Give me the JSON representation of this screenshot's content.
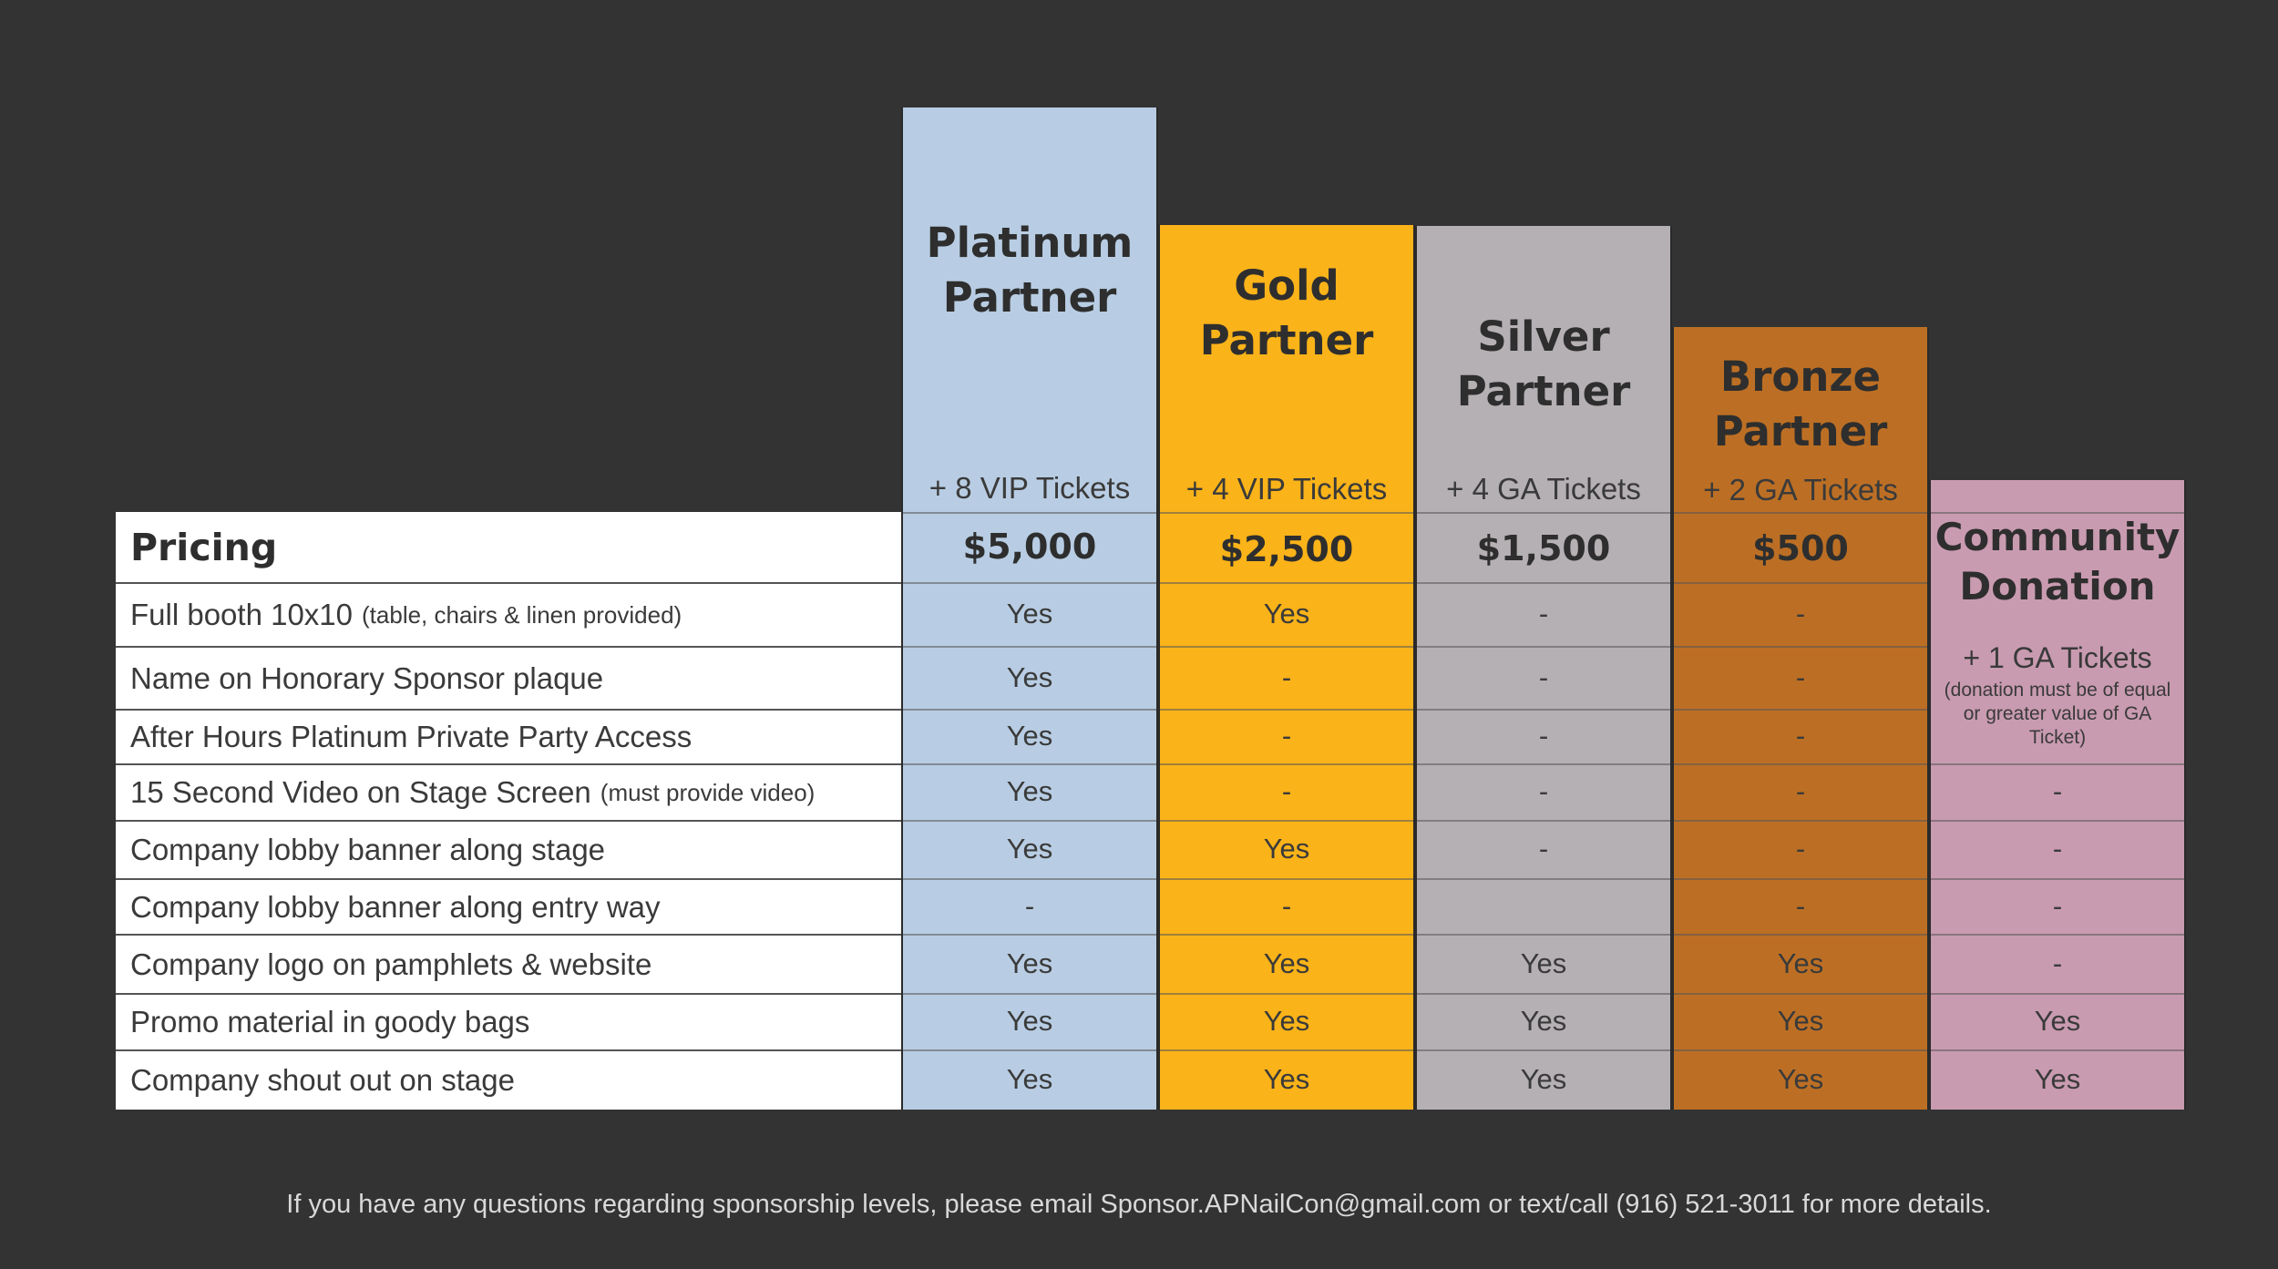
{
  "pricing_label": "Pricing",
  "features": [
    {
      "label": "Full booth 10x10",
      "note": "(table, chairs & linen provided)"
    },
    {
      "label": "Name on Honorary Sponsor plaque",
      "note": ""
    },
    {
      "label": "After Hours Platinum Private Party Access",
      "note": ""
    },
    {
      "label": "15 Second Video on Stage Screen",
      "note": "(must provide video)"
    },
    {
      "label": "Company lobby banner along stage",
      "note": ""
    },
    {
      "label": "Company lobby banner along entry way",
      "note": ""
    },
    {
      "label": "Company logo on pamphlets & website",
      "note": ""
    },
    {
      "label": "Promo material in goody bags",
      "note": ""
    },
    {
      "label": "Company shout out on stage",
      "note": ""
    }
  ],
  "tiers": [
    {
      "name_line1": "Platinum",
      "name_line2": "Partner",
      "tickets": "+ 8 VIP Tickets",
      "price": "$5,000",
      "color": "#b8cde3",
      "values": [
        "Yes",
        "Yes",
        "Yes",
        "Yes",
        "Yes",
        "-",
        "Yes",
        "Yes",
        "Yes"
      ]
    },
    {
      "name_line1": "Gold",
      "name_line2": "Partner",
      "tickets": "+ 4 VIP Tickets",
      "price": "$2,500",
      "color": "#fab319",
      "values": [
        "Yes",
        "-",
        "-",
        "-",
        "Yes",
        "-",
        "Yes",
        "Yes",
        "Yes"
      ]
    },
    {
      "name_line1": "Silver",
      "name_line2": "Partner",
      "tickets": "+ 4 GA Tickets",
      "price": "$1,500",
      "color": "#b5b0b4",
      "values": [
        "-",
        "-",
        "-",
        "-",
        "-",
        "",
        "Yes",
        "Yes",
        "Yes"
      ]
    },
    {
      "name_line1": "Bronze",
      "name_line2": "Partner",
      "tickets": "+ 2 GA Tickets",
      "price": "$500",
      "color": "#bc6f24",
      "values": [
        "-",
        "-",
        "-",
        "-",
        "-",
        "-",
        "Yes",
        "Yes",
        "Yes"
      ]
    }
  ],
  "community": {
    "name_line1": "Community",
    "name_line2": "Donation",
    "tickets": "+ 1 GA Tickets",
    "note": "(donation must be of equal or greater value of GA Ticket)",
    "color": "#c99bb0",
    "values": [
      "-",
      "-",
      "-",
      "-",
      "Yes",
      "Yes"
    ]
  },
  "footer": "If you have any questions regarding sponsorship levels, please email Sponsor.APNailCon@gmail.com or text/call (916) 521-3011 for more details."
}
